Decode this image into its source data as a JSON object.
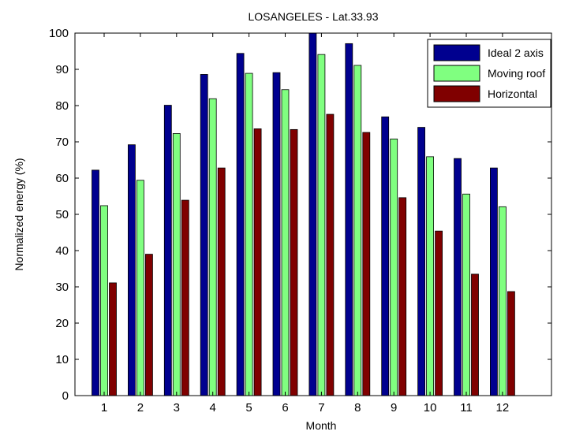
{
  "chart_data": {
    "type": "bar",
    "title": "LOSANGELES - Lat.33.93",
    "xlabel": "Month",
    "ylabel": "Normalized energy (%)",
    "ylim": [
      0,
      100
    ],
    "yticks": [
      "0",
      "10",
      "20",
      "30",
      "40",
      "50",
      "60",
      "70",
      "80",
      "90",
      "100"
    ],
    "categories": [
      "1",
      "2",
      "3",
      "4",
      "5",
      "6",
      "7",
      "8",
      "9",
      "10",
      "11",
      "12"
    ],
    "series": [
      {
        "name": "Ideal 2 axis",
        "color": "#00008f",
        "values": [
          62.2,
          69.2,
          80.1,
          88.6,
          94.4,
          89.1,
          100,
          97.1,
          76.9,
          74.0,
          65.4,
          62.8
        ]
      },
      {
        "name": "Moving roof",
        "color": "#80ff80",
        "values": [
          52.4,
          59.4,
          72.3,
          81.9,
          88.9,
          84.4,
          94.1,
          91.1,
          70.8,
          65.9,
          55.6,
          52.1
        ]
      },
      {
        "name": "Horizontal",
        "color": "#800000",
        "values": [
          31.1,
          39.0,
          53.9,
          62.8,
          73.6,
          73.4,
          77.6,
          72.6,
          54.6,
          45.4,
          33.5,
          28.7
        ]
      }
    ],
    "grid": false,
    "legend_position": "top-right"
  }
}
